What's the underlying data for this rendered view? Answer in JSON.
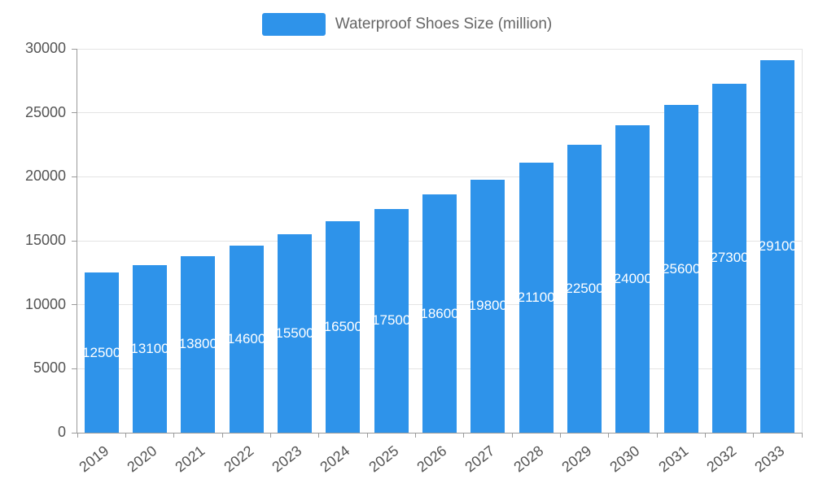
{
  "legend": {
    "label": "Waterproof Shoes Size (million)"
  },
  "colors": {
    "bar": "#2E93EA",
    "bar_label_text": "#FFFFFF",
    "axis_text": "#545454",
    "legend_text": "#666666",
    "grid_line": "#E4E4E4",
    "axis_line": "#9B9B9B"
  },
  "chart_data": {
    "type": "bar",
    "title": "Waterproof Shoes Size (million)",
    "series_name": "Waterproof Shoes Size (million)",
    "categories": [
      "2019",
      "2020",
      "2021",
      "2022",
      "2023",
      "2024",
      "2025",
      "2026",
      "2027",
      "2028",
      "2029",
      "2030",
      "2031",
      "2032",
      "2033"
    ],
    "values": [
      12500,
      13100,
      13800,
      14600,
      15500,
      16500,
      17500,
      18600,
      19800,
      21100,
      22500,
      24000,
      25600,
      27300,
      29100
    ],
    "xlabel": "",
    "ylabel": "",
    "ylim": [
      0,
      30000
    ],
    "yticks": [
      0,
      5000,
      10000,
      15000,
      20000,
      25000,
      30000
    ],
    "grid": true,
    "legend_position": "top-center",
    "data_labels": "inside-center",
    "x_tick_rotation_deg": -38
  }
}
